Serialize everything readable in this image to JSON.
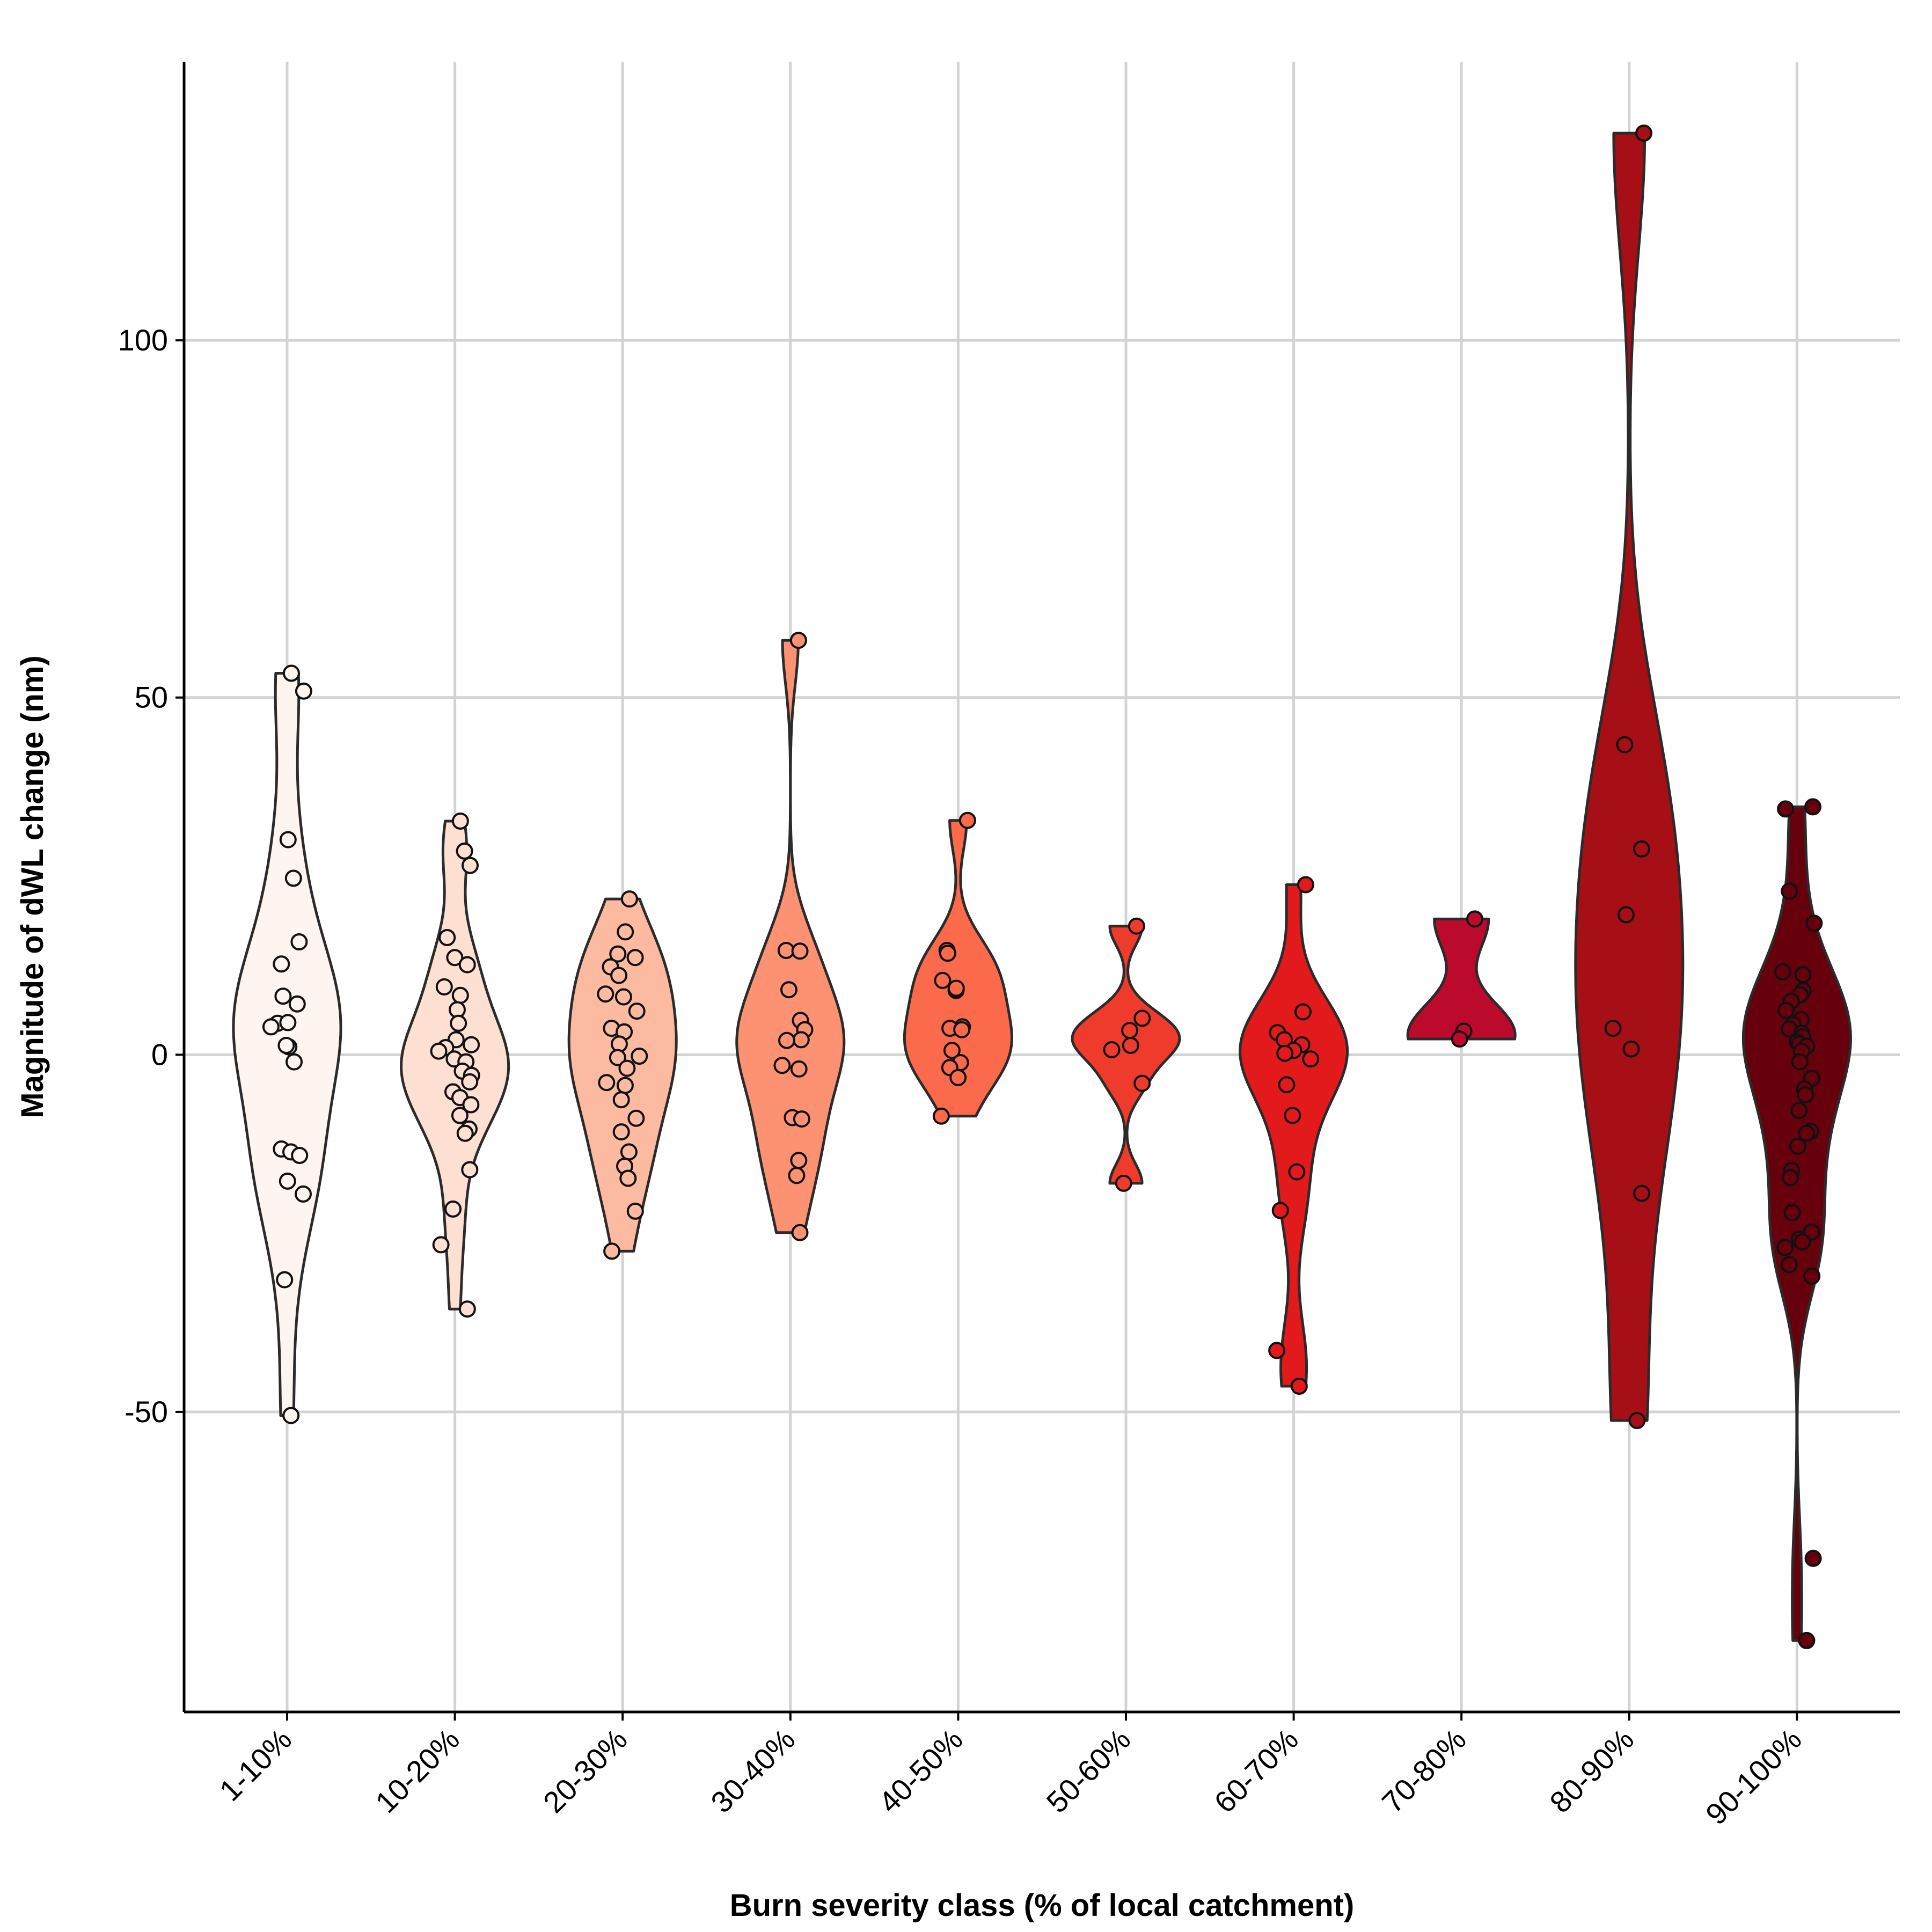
{
  "chart_data": {
    "type": "violin",
    "xlabel": "Burn severity class (% of local catchment)",
    "ylabel": "Magnitude of dWL change (nm)",
    "ylim": [
      -92,
      139
    ],
    "y_ticks": [
      -50,
      0,
      50,
      100
    ],
    "y_tick_labels": [
      "-50",
      "0",
      "50",
      "100"
    ],
    "grid": true,
    "legend": "none",
    "categories": [
      "1-10%",
      "10-20%",
      "20-30%",
      "30-40%",
      "40-50%",
      "50-60%",
      "60-70%",
      "70-80%",
      "80-90%",
      "90-100%"
    ],
    "colors": [
      "#FFF5F0",
      "#FEE0D2",
      "#FCBBA1",
      "#FC9272",
      "#FB6A4A",
      "#EF3B2C",
      "#E31A1C",
      "#BB0A2C",
      "#A50F15",
      "#67000D"
    ],
    "series": [
      {
        "category": "1-10%",
        "values": [
          53.4,
          50.9,
          30.1,
          24.7,
          15.8,
          12.7,
          8.2,
          7.1,
          4.4,
          3.9,
          4.5,
          1.1,
          1.3,
          -1.0,
          -13.2,
          -13.6,
          -14.1,
          -17.7,
          -19.5,
          -31.5,
          -50.5
        ]
      },
      {
        "category": "10-20%",
        "values": [
          32.7,
          28.5,
          26.5,
          16.4,
          13.6,
          12.6,
          9.5,
          8.3,
          6.3,
          4.4,
          2.1,
          1.4,
          1.0,
          0.5,
          -0.6,
          -1.0,
          -2.3,
          -2.9,
          -3.8,
          -5.2,
          -6.0,
          -7.0,
          -8.5,
          -10.4,
          -11.0,
          -16.1,
          -21.6,
          -26.6,
          -35.6
        ]
      },
      {
        "category": "20-30%",
        "values": [
          21.8,
          17.2,
          14.1,
          13.6,
          12.3,
          11.1,
          8.5,
          8.1,
          6.1,
          3.7,
          3.2,
          1.5,
          -0.2,
          -0.4,
          -1.9,
          -3.9,
          -4.3,
          -6.3,
          -8.9,
          -10.8,
          -13.6,
          -15.6,
          -17.3,
          -21.9,
          -27.5
        ]
      },
      {
        "category": "30-40%",
        "values": [
          58.0,
          14.6,
          14.5,
          9.1,
          4.8,
          3.5,
          2.1,
          2.0,
          -1.5,
          -2.0,
          -8.8,
          -9.0,
          -14.8,
          -16.9,
          -24.9
        ]
      },
      {
        "category": "40-50%",
        "values": [
          32.8,
          14.6,
          14.2,
          10.4,
          9.0,
          9.3,
          3.9,
          3.7,
          3.5,
          0.6,
          -1.1,
          -1.8,
          -3.2,
          -8.6
        ]
      },
      {
        "category": "50-60%",
        "values": [
          18.0,
          5.1,
          3.4,
          1.3,
          0.7,
          -4.0,
          -18.0
        ]
      },
      {
        "category": "60-70%",
        "values": [
          23.8,
          6.0,
          3.1,
          2.1,
          1.4,
          0.6,
          0.2,
          -0.6,
          -4.2,
          -8.5,
          -16.4,
          -21.8,
          -41.4,
          -46.4
        ]
      },
      {
        "category": "70-80%",
        "values": [
          19.0,
          3.3,
          2.2
        ]
      },
      {
        "category": "80-90%",
        "values": [
          129.0,
          43.4,
          28.8,
          19.6,
          3.7,
          0.8,
          -19.4,
          -51.2
        ]
      },
      {
        "category": "90-100%",
        "values": [
          34.7,
          34.4,
          22.9,
          18.4,
          11.2,
          11.6,
          9.0,
          8.4,
          7.5,
          6.2,
          4.9,
          4.2,
          3.6,
          3.0,
          2.5,
          1.8,
          1.5,
          1.2,
          0.5,
          -1.0,
          -3.3,
          -4.8,
          -5.6,
          -7.8,
          -10.7,
          -11.0,
          -12.8,
          -16.2,
          -17.2,
          -22.1,
          -24.8,
          -25.8,
          -26.2,
          -27.0,
          -29.4,
          -31.0,
          -70.5,
          -82.0
        ]
      }
    ]
  }
}
